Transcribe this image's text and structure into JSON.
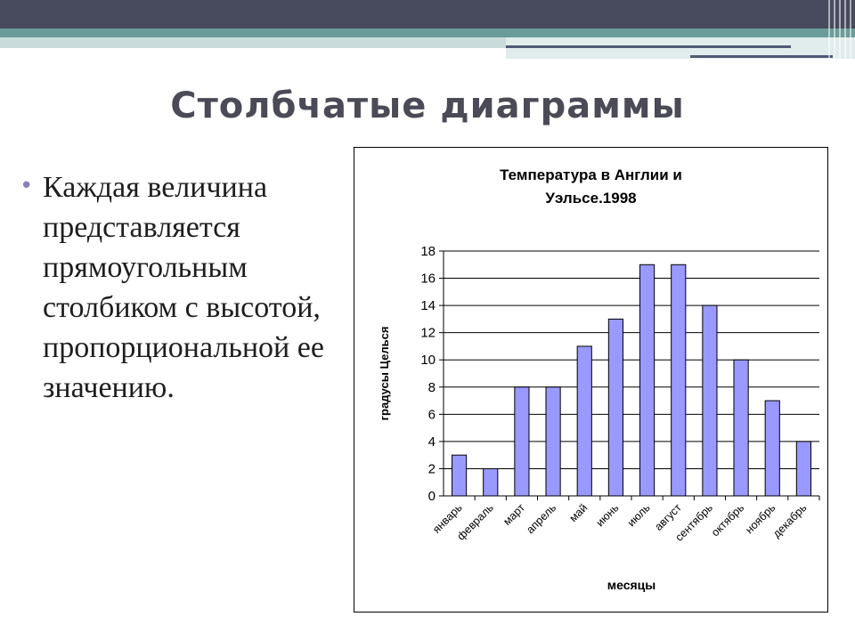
{
  "slide": {
    "title": "Столбчатые диаграммы",
    "bullet_marker": "•",
    "bullet_text": "Каждая величина представляется прямоугольным столбиком с высотой, пропорциональной ее значению."
  },
  "colors": {
    "bar_fill": "#9999ff",
    "bar_stroke": "#000000",
    "grid": "#000000",
    "title_text": "#4b4b57",
    "bullet_marker": "#8d7fb4"
  },
  "chart_data": {
    "type": "bar",
    "title_lines": [
      "Температура в Англии и",
      "Уэльсе.1998"
    ],
    "xlabel": "месяцы",
    "ylabel": "градусы Целься",
    "categories": [
      "январь",
      "февраль",
      "март",
      "апрель",
      "май",
      "июнь",
      "июль",
      "август",
      "сентябрь",
      "октябрь",
      "ноябрь",
      "декабрь"
    ],
    "values": [
      3,
      2,
      8,
      8,
      11,
      13,
      17,
      17,
      14,
      10,
      7,
      4
    ],
    "ylim": [
      0,
      18
    ],
    "yticks": [
      0,
      2,
      4,
      6,
      8,
      10,
      12,
      14,
      16,
      18
    ],
    "grid": true,
    "legend": "none"
  }
}
